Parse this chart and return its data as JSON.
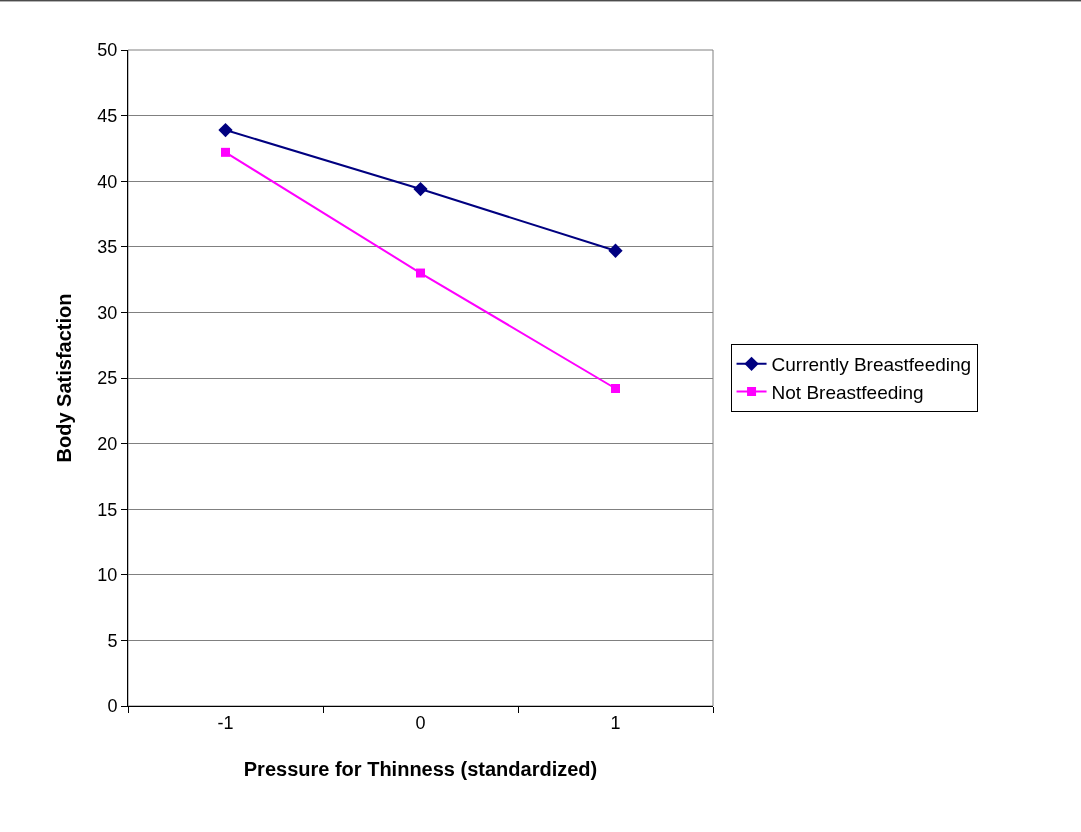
{
  "chart_data": {
    "type": "line",
    "xlabel": "Pressure for Thinness (standardized)",
    "ylabel": "Body Satisfaction",
    "categories": [
      "-1",
      "0",
      "1"
    ],
    "series": [
      {
        "name": "Currently Breastfeeding",
        "color": "#000080",
        "marker": "diamond",
        "values": [
          43.9,
          39.4,
          34.7
        ]
      },
      {
        "name": "Not Breastfeeding",
        "color": "#ff00ff",
        "marker": "square",
        "values": [
          42.2,
          33.0,
          24.2
        ]
      }
    ],
    "ylim": [
      0,
      50
    ],
    "yticks": [
      0,
      5,
      10,
      15,
      20,
      25,
      30,
      35,
      40,
      45,
      50
    ],
    "grid": "y",
    "legend": "right",
    "line_style": "solid"
  }
}
